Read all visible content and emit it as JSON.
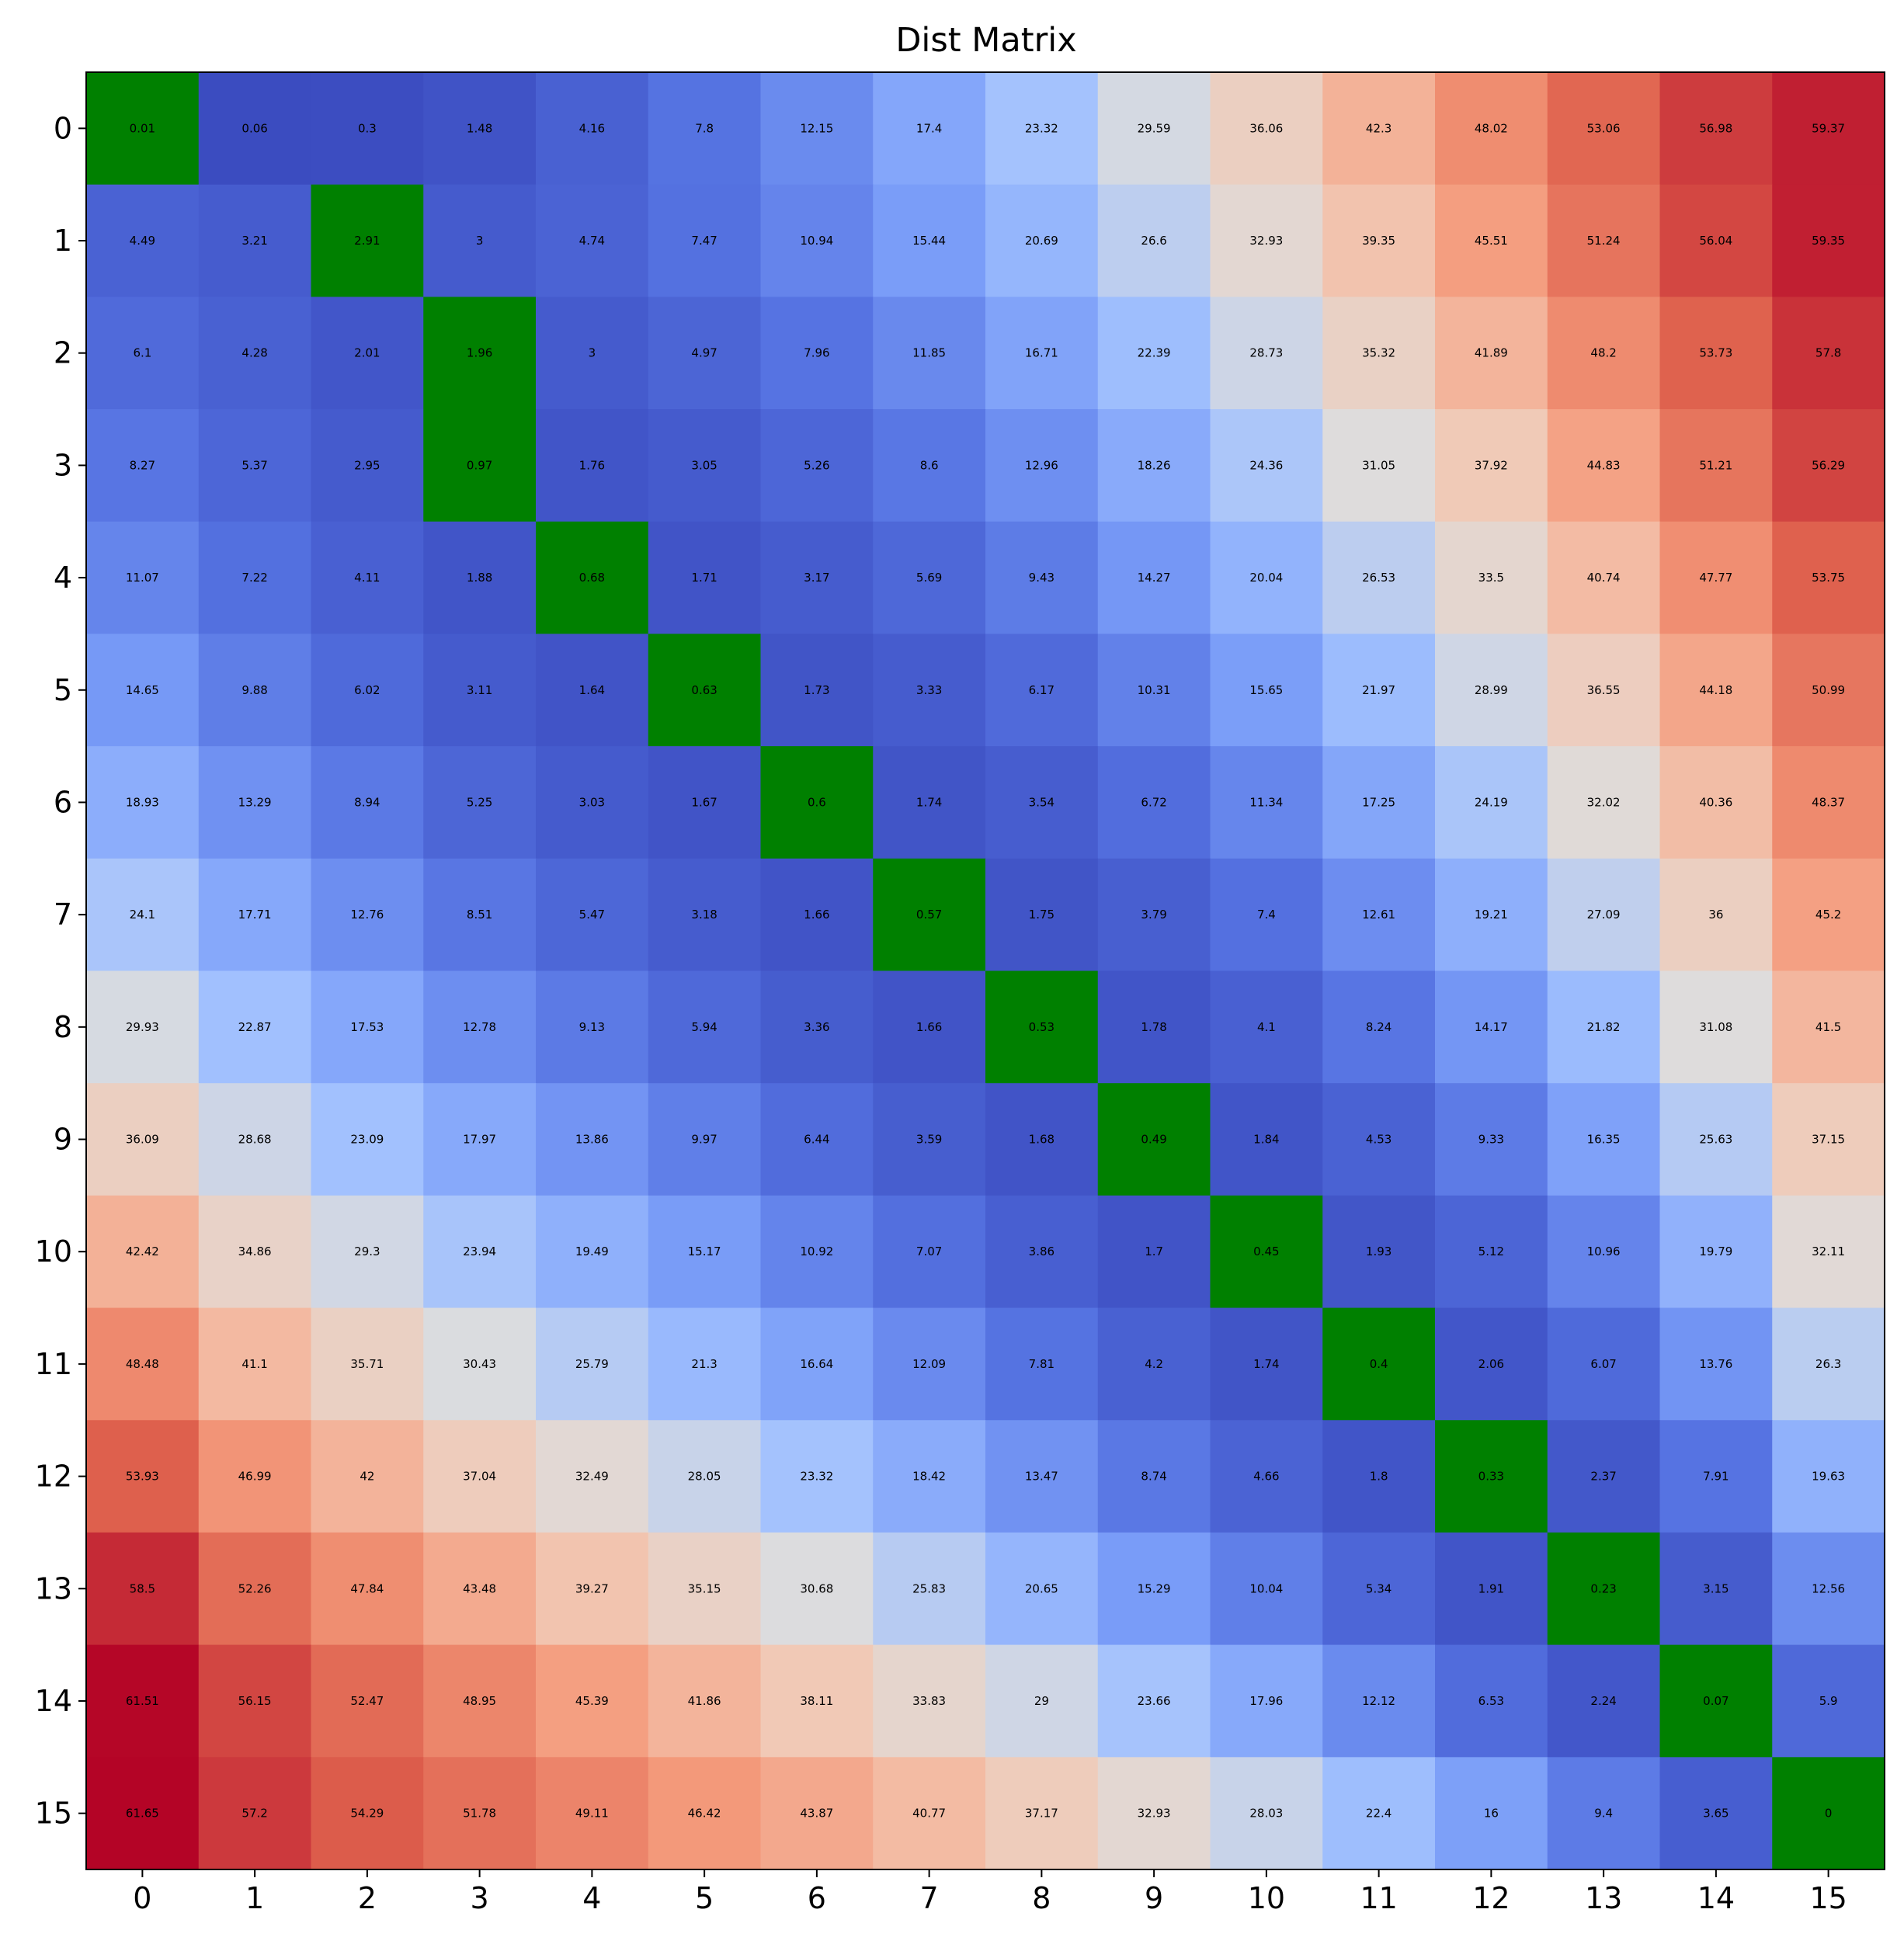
{
  "chart_data": {
    "type": "heatmap",
    "title": "Dist Matrix",
    "xlabel": "",
    "ylabel": "",
    "x_categories": [
      "0",
      "1",
      "2",
      "3",
      "4",
      "5",
      "6",
      "7",
      "8",
      "9",
      "10",
      "11",
      "12",
      "13",
      "14",
      "15"
    ],
    "y_categories": [
      "0",
      "1",
      "2",
      "3",
      "4",
      "5",
      "6",
      "7",
      "8",
      "9",
      "10",
      "11",
      "12",
      "13",
      "14",
      "15"
    ],
    "colormap": "coolwarm",
    "highlight_color": "#008000",
    "highlight_cells": [
      [
        0,
        0
      ],
      [
        1,
        2
      ],
      [
        2,
        3
      ],
      [
        3,
        3
      ],
      [
        4,
        4
      ],
      [
        5,
        5
      ],
      [
        6,
        6
      ],
      [
        7,
        7
      ],
      [
        8,
        8
      ],
      [
        9,
        9
      ],
      [
        10,
        10
      ],
      [
        11,
        11
      ],
      [
        12,
        12
      ],
      [
        13,
        13
      ],
      [
        14,
        14
      ],
      [
        15,
        15
      ]
    ],
    "values": [
      [
        0.01,
        0.06,
        0.3,
        1.48,
        4.16,
        7.8,
        12.15,
        17.4,
        23.32,
        29.59,
        36.06,
        42.3,
        48.02,
        53.06,
        56.98,
        59.37
      ],
      [
        4.49,
        3.21,
        2.91,
        3.0,
        4.74,
        7.47,
        10.94,
        15.44,
        20.69,
        26.6,
        32.93,
        39.35,
        45.51,
        51.24,
        56.04,
        59.35
      ],
      [
        6.1,
        4.28,
        2.01,
        1.96,
        3.0,
        4.97,
        7.96,
        11.85,
        16.71,
        22.39,
        28.73,
        35.32,
        41.89,
        48.2,
        53.73,
        57.8
      ],
      [
        8.27,
        5.37,
        2.95,
        0.97,
        1.76,
        3.05,
        5.26,
        8.6,
        12.96,
        18.26,
        24.36,
        31.05,
        37.92,
        44.83,
        51.21,
        56.29
      ],
      [
        11.07,
        7.22,
        4.11,
        1.88,
        0.68,
        1.71,
        3.17,
        5.69,
        9.43,
        14.27,
        20.04,
        26.53,
        33.5,
        40.74,
        47.77,
        53.75
      ],
      [
        14.65,
        9.88,
        6.02,
        3.11,
        1.64,
        0.63,
        1.73,
        3.33,
        6.17,
        10.31,
        15.65,
        21.97,
        28.99,
        36.55,
        44.18,
        50.99
      ],
      [
        18.93,
        13.29,
        8.94,
        5.25,
        3.03,
        1.67,
        0.6,
        1.74,
        3.54,
        6.72,
        11.34,
        17.25,
        24.19,
        32.02,
        40.36,
        48.37
      ],
      [
        24.1,
        17.71,
        12.76,
        8.51,
        5.47,
        3.18,
        1.66,
        0.57,
        1.75,
        3.79,
        7.4,
        12.61,
        19.21,
        27.09,
        36.0,
        45.2
      ],
      [
        29.93,
        22.87,
        17.53,
        12.78,
        9.13,
        5.94,
        3.36,
        1.66,
        0.53,
        1.78,
        4.1,
        8.24,
        14.17,
        21.82,
        31.08,
        41.5
      ],
      [
        36.09,
        28.68,
        23.09,
        17.97,
        13.86,
        9.97,
        6.44,
        3.59,
        1.68,
        0.49,
        1.84,
        4.53,
        9.33,
        16.35,
        25.63,
        37.15
      ],
      [
        42.42,
        34.86,
        29.3,
        23.94,
        19.49,
        15.17,
        10.92,
        7.07,
        3.86,
        1.7,
        0.45,
        1.93,
        5.12,
        10.96,
        19.79,
        32.11
      ],
      [
        48.48,
        41.1,
        35.71,
        30.43,
        25.79,
        21.3,
        16.64,
        12.09,
        7.81,
        4.2,
        1.74,
        0.4,
        2.06,
        6.07,
        13.76,
        26.3
      ],
      [
        53.93,
        46.99,
        42.0,
        37.04,
        32.49,
        28.05,
        23.32,
        18.42,
        13.47,
        8.74,
        4.66,
        1.8,
        0.33,
        2.37,
        7.91,
        19.63
      ],
      [
        58.5,
        52.26,
        47.84,
        43.48,
        39.27,
        35.15,
        30.68,
        25.83,
        20.65,
        15.29,
        10.04,
        5.34,
        1.91,
        0.23,
        3.15,
        12.56
      ],
      [
        61.51,
        56.15,
        52.47,
        48.95,
        45.39,
        41.86,
        38.11,
        33.83,
        29.0,
        23.66,
        17.96,
        12.12,
        6.53,
        2.24,
        0.07,
        5.9
      ],
      [
        61.65,
        57.2,
        54.29,
        51.78,
        49.11,
        46.42,
        43.87,
        40.77,
        37.17,
        32.93,
        28.03,
        22.4,
        16.0,
        9.4,
        3.65,
        0.0
      ]
    ],
    "value_range": [
      0,
      61.65
    ],
    "grid": false,
    "legend": "none"
  }
}
